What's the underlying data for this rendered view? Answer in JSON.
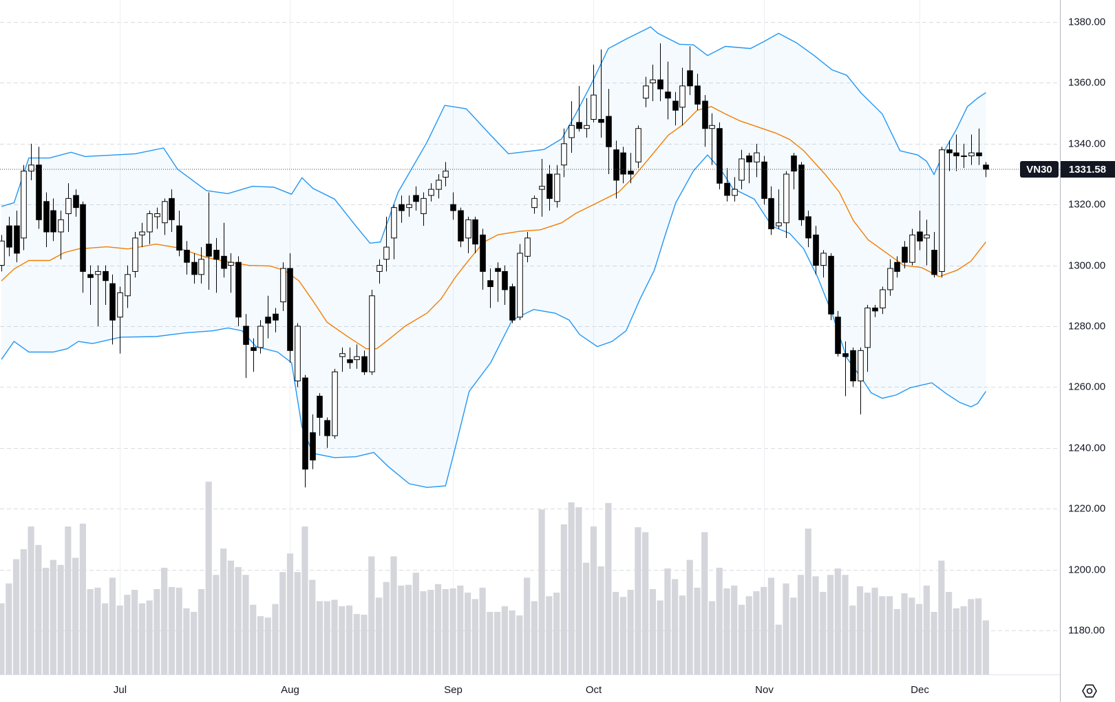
{
  "chart_data": {
    "type": "candlestick",
    "symbol": "VN30",
    "categories": [
      null,
      null,
      null,
      null,
      null,
      null,
      null,
      null,
      null,
      null,
      null,
      null,
      null,
      null,
      null,
      null,
      "Jul",
      null,
      null,
      null,
      null,
      null,
      null,
      null,
      null,
      null,
      null,
      null,
      null,
      null,
      null,
      null,
      null,
      null,
      null,
      null,
      null,
      null,
      null,
      "Aug",
      null,
      null,
      null,
      null,
      null,
      null,
      null,
      null,
      null,
      null,
      null,
      null,
      null,
      null,
      null,
      null,
      null,
      null,
      null,
      null,
      null,
      "Sep",
      null,
      null,
      null,
      null,
      null,
      null,
      null,
      null,
      null,
      null,
      null,
      null,
      null,
      null,
      null,
      null,
      null,
      null,
      "Oct",
      null,
      null,
      null,
      null,
      null,
      null,
      null,
      null,
      null,
      null,
      null,
      null,
      null,
      null,
      null,
      null,
      null,
      null,
      null,
      null,
      null,
      null,
      "Nov",
      null,
      null,
      null,
      null,
      null,
      null,
      null,
      null,
      null,
      null,
      null,
      null,
      null,
      null,
      null,
      null,
      null,
      null,
      null,
      null,
      "Dec",
      null,
      null,
      null,
      null,
      null,
      null,
      null,
      null,
      null
    ],
    "open": [
      1300,
      1313,
      1313,
      1309,
      1331,
      1333,
      1321,
      1318,
      1311,
      1317,
      1323,
      1320,
      1297,
      1297,
      1298,
      1294,
      1283,
      1290,
      1298,
      1310,
      1311,
      1316,
      1314,
      1322,
      1313,
      1305,
      1301,
      1297,
      1307,
      1305,
      1303,
      1300,
      1301,
      1280,
      1273,
      1273,
      1283,
      1284,
      1288,
      1299,
      1262,
      1263,
      1245,
      1257,
      1249,
      1244,
      1270,
      1269,
      1269,
      1270,
      1265,
      1298,
      1302,
      1309,
      1320,
      1319,
      1323,
      1317,
      1323,
      1325,
      1329,
      1320,
      1318,
      1309,
      1315,
      1310,
      1295,
      1299,
      1298,
      1293,
      1283,
      1303,
      1319,
      1325,
      1330,
      1321,
      1333,
      1342,
      1347,
      1345,
      1348,
      1348,
      1349,
      1338,
      1337,
      1331,
      1334,
      1355,
      1360,
      1361,
      1357,
      1354,
      1352,
      1364,
      1359,
      1354,
      1345,
      1345,
      1327,
      1323,
      1328,
      1336,
      1334,
      1334,
      1322,
      1313,
      1314,
      1336,
      1333,
      1316,
      1310,
      1300,
      1303,
      1283,
      1271,
      1272,
      1262,
      1273,
      1286,
      1286,
      1292,
      1301,
      1306,
      1301,
      1311,
      1309,
      1305,
      1298,
      1338,
      1337,
      1336,
      1336,
      1337,
      1333
    ],
    "high": [
      1310,
      1316,
      1318,
      1333,
      1340,
      1339,
      1324,
      1322,
      1318,
      1327,
      1325,
      1321,
      1300,
      1300,
      1300,
      1297,
      1293,
      1300,
      1311,
      1314,
      1318,
      1319,
      1322,
      1325,
      1318,
      1308,
      1304,
      1306,
      1324,
      1309,
      1314,
      1304,
      1303,
      1284,
      1276,
      1282,
      1290,
      1286,
      1301,
      1304,
      1281,
      1264,
      1251,
      1258,
      1250,
      1266,
      1273,
      1273,
      1274,
      1272,
      1292,
      1302,
      1316,
      1320,
      1323,
      1323,
      1326,
      1324,
      1327,
      1330,
      1334,
      1324,
      1319,
      1316,
      1316,
      1312,
      1299,
      1301,
      1300,
      1294,
      1307,
      1311,
      1323,
      1335,
      1333,
      1333,
      1345,
      1354,
      1359,
      1355,
      1366,
      1371,
      1358,
      1341,
      1339,
      1337,
      1346,
      1362,
      1366,
      1373,
      1367,
      1357,
      1365,
      1372,
      1363,
      1356,
      1350,
      1347,
      1332,
      1329,
      1338,
      1337,
      1340,
      1336,
      1326,
      1325,
      1331,
      1337,
      1334,
      1318,
      1313,
      1305,
      1304,
      1285,
      1275,
      1273,
      1273,
      1287,
      1287,
      1293,
      1302,
      1303,
      1308,
      1312,
      1318,
      1315,
      1311,
      1339,
      1341,
      1343,
      1340,
      1343,
      1345,
      1334
    ],
    "low": [
      1298,
      1303,
      1301,
      1305,
      1328,
      1312,
      1306,
      1308,
      1302,
      1311,
      1316,
      1291,
      1287,
      1280,
      1287,
      1274,
      1271,
      1286,
      1296,
      1306,
      1307,
      1312,
      1310,
      1311,
      1303,
      1297,
      1294,
      1294,
      1292,
      1291,
      1296,
      1291,
      1280,
      1263,
      1265,
      1271,
      1276,
      1278,
      1285,
      1268,
      1260,
      1227,
      1233,
      1244,
      1240,
      1243,
      1265,
      1266,
      1266,
      1264,
      1264,
      1294,
      1298,
      1302,
      1314,
      1316,
      1318,
      1313,
      1321,
      1322,
      1326,
      1315,
      1306,
      1304,
      1304,
      1292,
      1286,
      1288,
      1287,
      1281,
      1282,
      1301,
      1317,
      1316,
      1318,
      1319,
      1329,
      1337,
      1344,
      1342,
      1347,
      1342,
      1330,
      1322,
      1327,
      1327,
      1332,
      1352,
      1354,
      1354,
      1348,
      1346,
      1346,
      1356,
      1351,
      1339,
      1333,
      1325,
      1321,
      1321,
      1325,
      1327,
      1329,
      1320,
      1310,
      1312,
      1309,
      1325,
      1313,
      1306,
      1297,
      1296,
      1282,
      1270,
      1257,
      1260,
      1251,
      1265,
      1283,
      1284,
      1290,
      1296,
      1299,
      1300,
      1305,
      1300,
      1296,
      1296,
      1331,
      1331,
      1332,
      1333,
      1333,
      1329
    ],
    "close": [
      1308,
      1306,
      1304,
      1331,
      1333,
      1315,
      1311,
      1311,
      1315,
      1322,
      1319,
      1298,
      1296,
      1298,
      1295,
      1282,
      1291,
      1297,
      1309,
      1311,
      1317,
      1317,
      1321,
      1315,
      1305,
      1301,
      1297,
      1302,
      1303,
      1302,
      1299,
      1301,
      1283,
      1274,
      1272,
      1280,
      1281,
      1282,
      1299,
      1272,
      1280,
      1233,
      1236,
      1250,
      1244,
      1265,
      1271,
      1268,
      1270,
      1265,
      1290,
      1300,
      1306,
      1319,
      1318,
      1320,
      1321,
      1322,
      1325,
      1328,
      1331,
      1318,
      1308,
      1315,
      1307,
      1298,
      1293,
      1298,
      1292,
      1282,
      1304,
      1309,
      1322,
      1326,
      1322,
      1330,
      1340,
      1346,
      1345,
      1346,
      1356,
      1347,
      1339,
      1328,
      1330,
      1330,
      1345,
      1359,
      1361,
      1358,
      1355,
      1351,
      1359,
      1359,
      1353,
      1345,
      1346,
      1327,
      1323,
      1325,
      1335,
      1334,
      1337,
      1322,
      1312,
      1314,
      1330,
      1331,
      1315,
      1309,
      1300,
      1304,
      1284,
      1271,
      1270,
      1262,
      1272,
      1286,
      1285,
      1292,
      1299,
      1298,
      1301,
      1310,
      1308,
      1310,
      1297,
      1338,
      1337,
      1336,
      1336,
      1337,
      1336,
      1331.58
    ],
    "up_color": "#ffffff",
    "down_color": "#000000",
    "ylim": [
      1165.5,
      1387.25
    ],
    "yticks": [
      {
        "value": 1180,
        "label": "1180.00"
      },
      {
        "value": 1200,
        "label": "1200.00"
      },
      {
        "value": 1220,
        "label": "1220.00"
      },
      {
        "value": 1240,
        "label": "1240.00"
      },
      {
        "value": 1260,
        "label": "1260.00"
      },
      {
        "value": 1280,
        "label": "1280.00"
      },
      {
        "value": 1300,
        "label": "1300.00"
      },
      {
        "value": 1320,
        "label": "1320.00"
      },
      {
        "value": 1340,
        "label": "1340.00"
      },
      {
        "value": 1360,
        "label": "1360.00"
      },
      {
        "value": 1380,
        "label": "1380.00"
      }
    ],
    "grid": true,
    "last_price": {
      "value": 1331.58,
      "label": "1331.58"
    },
    "volume": {
      "color": "#d5d6db",
      "ylim": [
        0,
        948
      ],
      "values": [
        100,
        128,
        162,
        176,
        208,
        182,
        150,
        161,
        154,
        208,
        164,
        212,
        120,
        122,
        100,
        136,
        97,
        112,
        119,
        100,
        104,
        120,
        150,
        123,
        122,
        93,
        88,
        120,
        271,
        140,
        177,
        160,
        151,
        140,
        98,
        82,
        80,
        99,
        144,
        170,
        144,
        208,
        133,
        103,
        103,
        105,
        96,
        97,
        85,
        84,
        166,
        108,
        130,
        166,
        125,
        126,
        143,
        117,
        119,
        127,
        120,
        121,
        125,
        115,
        106,
        122,
        88,
        88,
        96,
        90,
        83,
        136,
        103,
        232,
        110,
        115,
        211,
        242,
        235,
        157,
        208,
        152,
        241,
        116,
        109,
        119,
        207,
        200,
        120,
        104,
        149,
        134,
        111,
        161,
        122,
        200,
        103,
        150,
        121,
        125,
        98,
        110,
        117,
        123,
        136,
        70,
        128,
        108,
        140,
        205,
        138,
        116,
        140,
        149,
        140,
        97,
        124,
        115,
        122,
        110,
        110,
        92,
        114,
        108,
        99,
        125,
        88,
        160,
        116,
        93,
        96,
        106,
        107,
        76
      ]
    },
    "upper_band": {
      "color": "#2196f3",
      "x": [
        0,
        1.7,
        3.7,
        6.5,
        9.4,
        11.3,
        15.2,
        18.1,
        21.9,
        23.8,
        27.7,
        30.6,
        33.9,
        36.8,
        39.2,
        40.6,
        42.1,
        45.0,
        47.9,
        49.8,
        51.2,
        53.6,
        57.5,
        59.9,
        62.8,
        66.1,
        68.5,
        70.9,
        73.3,
        75.7,
        77.6,
        79.6,
        82.0,
        84.4,
        86.3,
        87.7,
        88.7,
        91.6,
        93.5,
        95.4,
        97.8,
        101.2,
        103.1,
        105.0,
        107.4,
        109.8,
        112.2,
        114.2,
        116.1,
        119.0,
        121.4,
        123.8,
        125.0,
        126.0,
        127.6,
        129.1,
        130.5,
        131.9,
        133.0
      ],
      "values": [
        1319.4,
        1320.6,
        1335.3,
        1335.3,
        1337.2,
        1335.8,
        1336.3,
        1336.7,
        1338.6,
        1331.6,
        1324.6,
        1323.6,
        1326.0,
        1325.7,
        1323.4,
        1328.8,
        1325.3,
        1321.8,
        1312.9,
        1307.3,
        1307.7,
        1324.1,
        1340.5,
        1352.6,
        1351.5,
        1342.8,
        1336.7,
        1337.4,
        1338.1,
        1341.6,
        1349.8,
        1359.2,
        1371.3,
        1374.4,
        1376.7,
        1378.4,
        1376.3,
        1372.7,
        1372.5,
        1369.0,
        1372.0,
        1371.3,
        1373.7,
        1376.3,
        1373.2,
        1369.0,
        1364.3,
        1362.5,
        1356.8,
        1349.8,
        1337.7,
        1336.3,
        1334.2,
        1329.9,
        1338.6,
        1345.1,
        1352.2,
        1355.0,
        1356.8
      ]
    },
    "middle_band": {
      "color": "#f57c00",
      "x": [
        0,
        1.7,
        3.7,
        6.5,
        8.5,
        10.4,
        14.2,
        17.1,
        20.9,
        23.8,
        27.7,
        30.6,
        33.4,
        36.3,
        38.2,
        40.2,
        42.1,
        44.0,
        46.9,
        49.3,
        50.7,
        52.2,
        54.6,
        57.5,
        59.4,
        61.3,
        63.2,
        65.2,
        67.1,
        70.0,
        72.8,
        75.7,
        77.6,
        80.5,
        83.4,
        85.3,
        87.3,
        90.1,
        92.1,
        94.0,
        95.9,
        97.8,
        99.8,
        101.7,
        104.6,
        106.5,
        108.4,
        111.3,
        113.2,
        115.1,
        117.1,
        119.9,
        121.9,
        124.3,
        126.7,
        129.1,
        131.0,
        133.0
      ],
      "values": [
        1294.9,
        1298.8,
        1301.6,
        1301.6,
        1304.2,
        1305.4,
        1306.1,
        1305.4,
        1307.0,
        1305.8,
        1302.6,
        1301.2,
        1300.0,
        1299.8,
        1298.4,
        1294.9,
        1288.3,
        1281.3,
        1276.4,
        1272.6,
        1272.6,
        1275.4,
        1280.1,
        1284.3,
        1289.0,
        1296.0,
        1301.9,
        1307.7,
        1310.1,
        1311.2,
        1311.7,
        1314.0,
        1317.1,
        1320.6,
        1324.1,
        1328.8,
        1334.6,
        1342.8,
        1346.3,
        1351.0,
        1352.2,
        1349.8,
        1347.5,
        1345.9,
        1343.5,
        1341.4,
        1337.7,
        1329.9,
        1324.1,
        1314.7,
        1308.4,
        1303.5,
        1300.0,
        1299.3,
        1296.3,
        1298.4,
        1301.4,
        1307.7
      ]
    },
    "lower_band": {
      "color": "#2196f3",
      "x": [
        0,
        1.7,
        3.7,
        7.0,
        8.9,
        10.4,
        12.3,
        16.1,
        20.9,
        24.8,
        28.6,
        30.6,
        32.5,
        34.4,
        37.3,
        39.2,
        40.6,
        42.1,
        45.0,
        47.9,
        50.3,
        52.2,
        55.1,
        57.5,
        60.0,
        61.3,
        63.2,
        66.1,
        69.0,
        71.9,
        74.8,
        76.7,
        78.1,
        80.5,
        82.5,
        84.4,
        86.3,
        88.2,
        89.7,
        91.1,
        93.5,
        95.4,
        97.3,
        98.8,
        101.7,
        104.1,
        106.5,
        108.4,
        110.3,
        112.2,
        114.2,
        116.1,
        117.5,
        119.0,
        120.9,
        122.8,
        125.7,
        127.6,
        129.5,
        131.0,
        131.9,
        133.0
      ],
      "values": [
        1269.1,
        1275.0,
        1271.5,
        1271.5,
        1272.6,
        1275.0,
        1274.3,
        1276.4,
        1276.6,
        1277.8,
        1278.5,
        1279.4,
        1278.5,
        1273.3,
        1271.5,
        1268.0,
        1246.9,
        1238.2,
        1236.8,
        1237.1,
        1238.5,
        1234.0,
        1228.2,
        1227.0,
        1227.5,
        1239.9,
        1258.6,
        1268.0,
        1282.0,
        1285.5,
        1284.3,
        1282.0,
        1277.3,
        1273.3,
        1275.0,
        1278.5,
        1289.0,
        1298.4,
        1310.1,
        1320.6,
        1331.1,
        1336.3,
        1331.1,
        1325.3,
        1321.8,
        1312.9,
        1310.5,
        1305.4,
        1296.0,
        1284.3,
        1269.6,
        1263.3,
        1258.1,
        1256.3,
        1257.4,
        1259.8,
        1261.4,
        1257.9,
        1254.9,
        1253.5,
        1254.6,
        1258.6
      ]
    }
  }
}
